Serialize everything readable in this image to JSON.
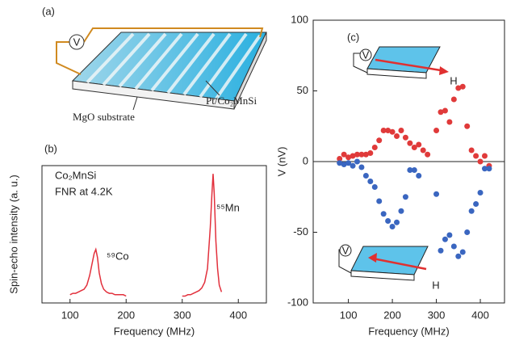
{
  "diagram": {
    "panel_label": "(a)",
    "voltmeter": "V",
    "substrate_label": "MgO substrate",
    "film_label": "Pt/Co₂MnSi"
  },
  "chart_data": [
    {
      "type": "line",
      "panel_label": "(b)",
      "xlabel": "Frequency (MHz)",
      "ylabel": "Spin-echo intensity (a. u.)",
      "annotations": [
        "Co₂MnSi",
        "FNR at 4.2K",
        "⁵⁹Co",
        "⁵⁵Mn"
      ],
      "xlim": [
        50,
        450
      ],
      "xticks": [
        100,
        200,
        300,
        400
      ],
      "ylim": [
        0,
        1
      ],
      "color": "#e2303c",
      "x": [
        100,
        105,
        110,
        115,
        120,
        125,
        130,
        135,
        140,
        143,
        146,
        149,
        152,
        156,
        160,
        165,
        170,
        175,
        180,
        185,
        190,
        195,
        200,
        250,
        300,
        305,
        310,
        315,
        320,
        325,
        330,
        335,
        340,
        345,
        350,
        353,
        355,
        357,
        360,
        363,
        366,
        370
      ],
      "values": [
        0.06,
        0.07,
        0.07,
        0.08,
        0.09,
        0.1,
        0.13,
        0.2,
        0.3,
        0.36,
        0.39,
        0.33,
        0.22,
        0.14,
        0.1,
        0.08,
        0.07,
        0.07,
        0.06,
        0.06,
        0.06,
        0.06,
        0.05,
        null,
        0.05,
        0.05,
        0.06,
        0.06,
        0.07,
        0.08,
        0.09,
        0.11,
        0.15,
        0.25,
        0.55,
        0.8,
        0.94,
        0.8,
        0.45,
        0.25,
        0.13,
        0.08
      ]
    },
    {
      "type": "scatter",
      "panel_label": "(c)",
      "xlabel": "Frequency (MHz)",
      "ylabel": "V (nV)",
      "annotations": [
        "V",
        "H",
        "V",
        "H"
      ],
      "xlim": [
        20,
        455
      ],
      "xticks": [
        100,
        200,
        300,
        400
      ],
      "ylim": [
        -100,
        100
      ],
      "yticks": [
        -100,
        -50,
        0,
        50,
        100
      ],
      "series": [
        {
          "color": "#e03a3a",
          "x": [
            80,
            90,
            100,
            110,
            120,
            130,
            140,
            150,
            160,
            170,
            180,
            190,
            200,
            210,
            220,
            230,
            240,
            250,
            260,
            270,
            280,
            300,
            310,
            320,
            330,
            340,
            350,
            360,
            370,
            380,
            390,
            400,
            410,
            420
          ],
          "values": [
            2,
            5,
            3,
            4,
            5,
            5,
            5,
            6,
            10,
            15,
            22,
            22,
            21,
            18,
            22,
            17,
            13,
            10,
            12,
            8,
            5,
            22,
            35,
            36,
            28,
            44,
            52,
            53,
            25,
            8,
            4,
            0,
            4,
            -3
          ]
        },
        {
          "color": "#3a66c0",
          "x": [
            80,
            90,
            100,
            110,
            120,
            130,
            140,
            150,
            160,
            170,
            180,
            190,
            200,
            210,
            220,
            230,
            240,
            250,
            260,
            300,
            310,
            320,
            330,
            340,
            350,
            360,
            370,
            380,
            390,
            400,
            410,
            420
          ],
          "values": [
            -1,
            -2,
            -1,
            -3,
            0,
            -4,
            -10,
            -14,
            -18,
            -28,
            -37,
            -42,
            -46,
            -43,
            -35,
            -25,
            -6,
            -6,
            -10,
            -23,
            -63,
            -55,
            -52,
            -60,
            -67,
            -64,
            -50,
            -35,
            -30,
            -22,
            -5,
            -5
          ]
        }
      ]
    }
  ]
}
